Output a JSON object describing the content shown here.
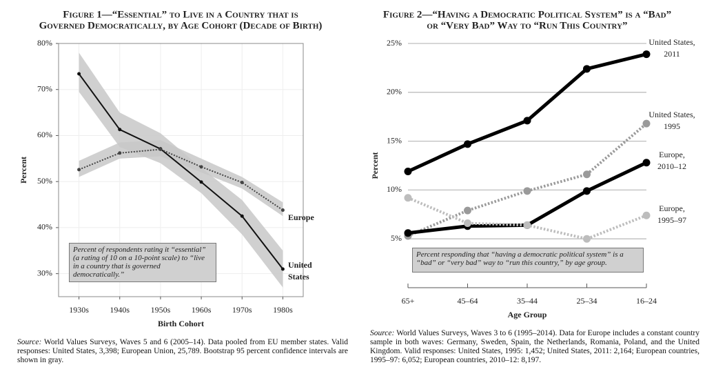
{
  "chart_data": [
    {
      "type": "line",
      "title": [
        "Figure 1—“Essential” to Live in a Country that is",
        "Governed Democratically, by Age Cohort (Decade of Birth)"
      ],
      "x_label": "Birth Cohort",
      "y_label": "Percent",
      "categories": [
        "1930s",
        "1940s",
        "1950s",
        "1960s",
        "1970s",
        "1980s"
      ],
      "ylim": [
        25,
        80
      ],
      "yticks": [
        {
          "value": 30,
          "label": "30%"
        },
        {
          "value": 40,
          "label": "40%"
        },
        {
          "value": 50,
          "label": "50%"
        },
        {
          "value": 60,
          "label": "60%"
        },
        {
          "value": 70,
          "label": "70%"
        },
        {
          "value": 80,
          "label": "80%"
        }
      ],
      "grid": true,
      "series": [
        {
          "name": "United States",
          "color": "#111111",
          "style": "solid",
          "values": [
            73.4,
            61.3,
            57.1,
            49.9,
            42.5,
            31.0
          ],
          "ci_lower": [
            69.5,
            57.5,
            54,
            47.5,
            38.5,
            27
          ],
          "ci_upper": [
            78,
            65,
            60.5,
            53,
            46,
            35
          ],
          "band_color": "#c8c8c8"
        },
        {
          "name": "Europe",
          "color": "#444444",
          "style": "dotted",
          "values": [
            52.6,
            56.2,
            57.0,
            53.2,
            49.8,
            43.8
          ],
          "ci_lower": [
            51,
            55,
            55.5,
            52,
            48.5,
            42.5
          ],
          "ci_upper": [
            54.5,
            58.5,
            59,
            55,
            51,
            45.5
          ],
          "band_color": "#c8c8c8"
        }
      ],
      "note": "Percent of respondents rating it “essential” (a rating of 10 on a 10-point scale) to “live in a country that is governed democratically.”",
      "source_label": "Source:",
      "source": "World Values Surveys, Waves 5 and 6 (2005–14). Data pooled from EU member states. Valid responses: United States, 3,398; European Union, 25,789. Bootstrap 95 percent confidence intervals are shown in gray."
    },
    {
      "type": "line",
      "title": [
        "Figure 2—“Having a Democratic Political System” is a “Bad”",
        "or “Very Bad” Way to “Run This Country”"
      ],
      "x_label": "Age Group",
      "y_label": "Percent",
      "categories": [
        "65+",
        "45–64",
        "35–44",
        "25–34",
        "16–24"
      ],
      "ylim": [
        0,
        25
      ],
      "yticks": [
        {
          "value": 5,
          "label": "5%"
        },
        {
          "value": 10,
          "label": "10%"
        },
        {
          "value": 15,
          "label": "15%"
        },
        {
          "value": 20,
          "label": "20%"
        },
        {
          "value": 25,
          "label": "25%"
        }
      ],
      "grid": true,
      "series": [
        {
          "name": "United States, 2011",
          "color": "#000000",
          "style": "solid",
          "values": [
            11.9,
            14.7,
            17.1,
            22.4,
            23.9
          ]
        },
        {
          "name": "United States, 1995",
          "color": "#9a9a9a",
          "style": "dotted",
          "values": [
            5.3,
            7.9,
            9.9,
            11.6,
            16.8
          ]
        },
        {
          "name": "Europe, 2010–12",
          "color": "#000000",
          "style": "solid",
          "values": [
            5.6,
            6.3,
            6.4,
            9.9,
            12.8
          ]
        },
        {
          "name": "Europe, 1995–97",
          "color": "#bdbdbd",
          "style": "dotted",
          "values": [
            9.2,
            6.6,
            6.4,
            5.0,
            7.4
          ]
        }
      ],
      "note": "Percent responding that “having a democratic political system” is a “bad” or “very bad” way to “run this country,” by age group.",
      "source_label": "Source:",
      "source": "World Values Surveys, Waves 3 to 6 (1995–2014). Data for Europe includes a constant country sample in both waves: Germany, Sweden, Spain, the Netherlands, Romania, Poland, and the United Kingdom. Valid responses: United States, 1995: 1,452; United States, 2011: 2,164; European countries, 1995–97: 6,052; European countries, 2010–12: 8,197."
    }
  ]
}
